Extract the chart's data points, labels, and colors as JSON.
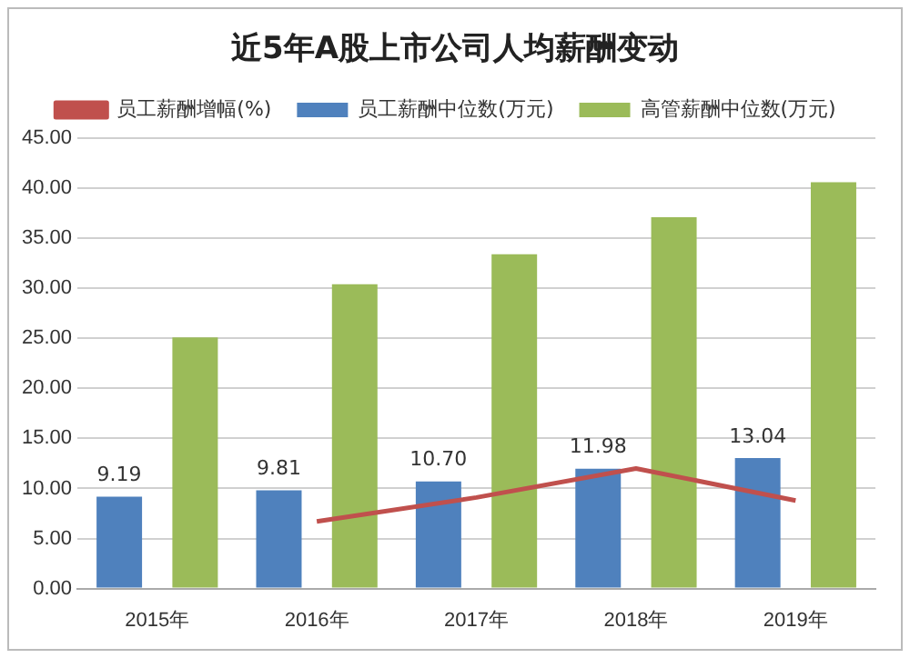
{
  "chart_data": {
    "type": "bar",
    "title": "近5年A股上市公司人均薪酬变动",
    "categories": [
      "2015年",
      "2016年",
      "2017年",
      "2018年",
      "2019年"
    ],
    "series": [
      {
        "name": "员工薪酬中位数(万元)",
        "color": "#4f81bd",
        "values": [
          9.19,
          9.81,
          10.7,
          11.98,
          13.04
        ],
        "value_labels": [
          "9.19",
          "9.81",
          "10.70",
          "11.98",
          "13.04"
        ]
      },
      {
        "name": "高管薪酬中位数(万元)",
        "color": "#9bbb59",
        "values": [
          25.1,
          30.4,
          33.4,
          37.1,
          40.6
        ]
      },
      {
        "name": "员工薪酬增幅(%)",
        "type": "line",
        "color": "#c0504d",
        "values": [
          null,
          6.7,
          9.1,
          12.0,
          8.8
        ],
        "marker": "none"
      }
    ],
    "ylim": [
      0,
      45
    ],
    "yticks": [
      {
        "value": 0,
        "label": "0.00"
      },
      {
        "value": 5,
        "label": "5.00"
      },
      {
        "value": 10,
        "label": "10.00"
      },
      {
        "value": 15,
        "label": "15.00"
      },
      {
        "value": 20,
        "label": "20.00"
      },
      {
        "value": 25,
        "label": "25.00"
      },
      {
        "value": 30,
        "label": "30.00"
      },
      {
        "value": 35,
        "label": "35.00"
      },
      {
        "value": 40,
        "label": "40.00"
      },
      {
        "value": 45,
        "label": "45.00"
      }
    ],
    "grid": "y",
    "legend": "top"
  }
}
